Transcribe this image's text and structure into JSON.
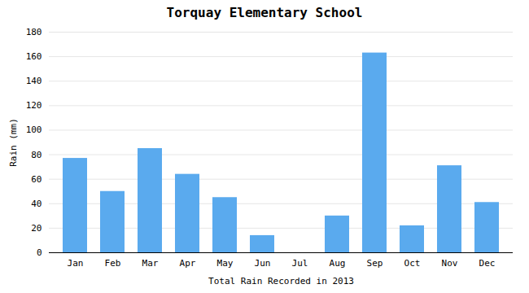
{
  "chart_data": {
    "type": "bar",
    "title": "Torquay Elementary School",
    "xlabel": "Total Rain Recorded in 2013",
    "ylabel": "Rain (mm)",
    "categories": [
      "Jan",
      "Feb",
      "Mar",
      "Apr",
      "May",
      "Jun",
      "Jul",
      "Aug",
      "Sep",
      "Oct",
      "Nov",
      "Dec"
    ],
    "values": [
      77,
      50,
      85,
      64,
      45,
      14,
      0,
      30,
      163,
      22,
      71,
      41
    ],
    "color": "#5aaaee",
    "ylim": [
      0,
      180
    ],
    "yticks": [
      0,
      20,
      40,
      60,
      80,
      100,
      120,
      140,
      160,
      180
    ],
    "grid": true
  }
}
